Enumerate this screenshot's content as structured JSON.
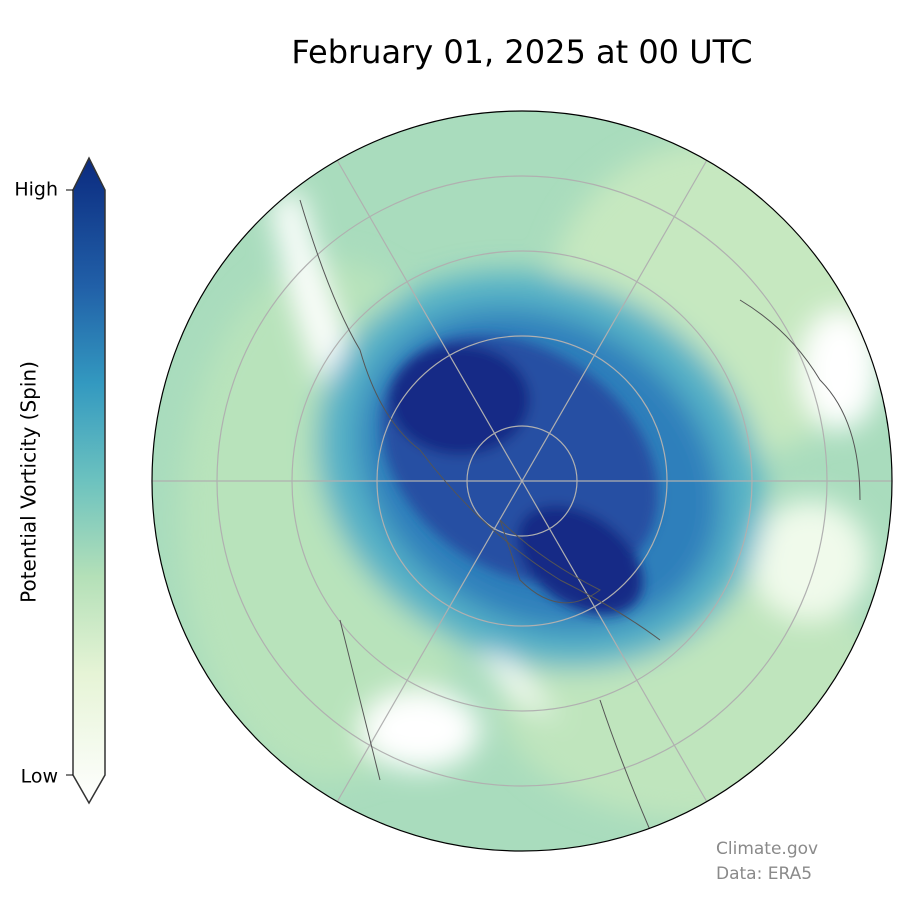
{
  "header": {
    "title": "February 01, 2025 at 00 UTC"
  },
  "colorbar": {
    "label": "Potential Vorticity (Spin)",
    "high": "High",
    "low": "Low"
  },
  "credits": {
    "source": "Climate.gov",
    "data": "Data: ERA5"
  }
}
